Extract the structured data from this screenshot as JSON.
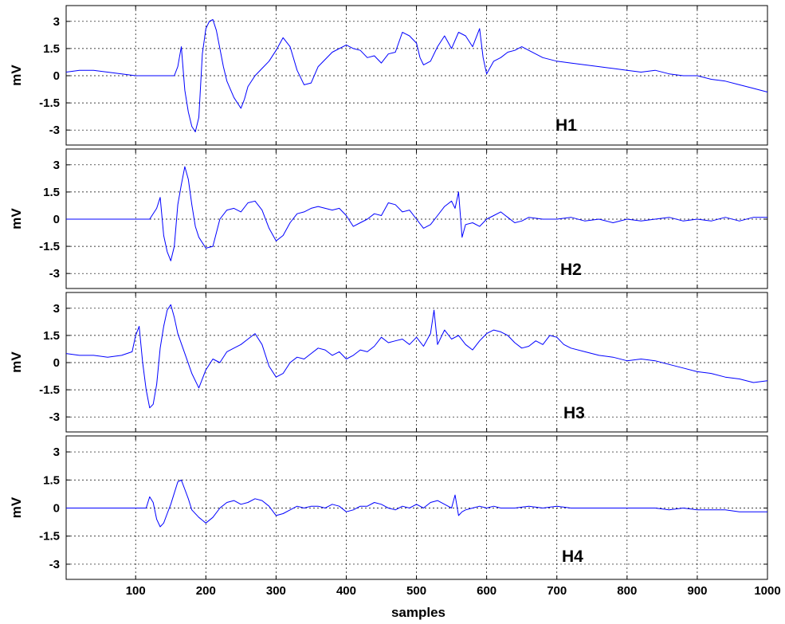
{
  "chart_data": {
    "type": "line",
    "x_label": "samples",
    "x_ticks": [
      100,
      200,
      300,
      400,
      500,
      600,
      700,
      800,
      900,
      1000
    ],
    "xlim": [
      1,
      1000
    ],
    "y_ticks": [
      3,
      1.5,
      0,
      -1.5,
      -3
    ],
    "y_tick_labels": [
      "3",
      "1.5",
      "0",
      "-1.5",
      "-3"
    ],
    "ylim": [
      -3.3,
      3.3
    ],
    "grid": true,
    "line_color": "#0000ff",
    "panels": [
      {
        "label": "H1",
        "ylabel": "mV",
        "x": [
          1,
          20,
          40,
          60,
          80,
          100,
          120,
          140,
          155,
          160,
          165,
          170,
          175,
          180,
          185,
          190,
          195,
          200,
          205,
          210,
          215,
          220,
          225,
          230,
          240,
          250,
          255,
          260,
          270,
          280,
          290,
          300,
          310,
          320,
          330,
          340,
          350,
          360,
          380,
          400,
          410,
          420,
          430,
          440,
          450,
          460,
          470,
          480,
          490,
          500,
          505,
          510,
          520,
          530,
          540,
          550,
          560,
          570,
          580,
          590,
          595,
          600,
          610,
          620,
          630,
          640,
          650,
          660,
          680,
          700,
          720,
          740,
          760,
          780,
          800,
          820,
          840,
          860,
          880,
          900,
          920,
          940,
          960,
          980,
          1000
        ],
        "values": [
          0.2,
          0.3,
          0.3,
          0.2,
          0.1,
          0.0,
          0.0,
          0.0,
          0.0,
          0.5,
          1.6,
          -0.8,
          -2.0,
          -2.8,
          -3.1,
          -2.3,
          1.2,
          2.6,
          3.0,
          3.1,
          2.5,
          1.5,
          0.5,
          -0.3,
          -1.2,
          -1.8,
          -1.3,
          -0.6,
          0.0,
          0.4,
          0.8,
          1.4,
          2.1,
          1.6,
          0.3,
          -0.5,
          -0.4,
          0.5,
          1.3,
          1.7,
          1.5,
          1.4,
          1.0,
          1.1,
          0.7,
          1.2,
          1.3,
          2.4,
          2.2,
          1.8,
          1.0,
          0.6,
          0.8,
          1.6,
          2.2,
          1.5,
          2.4,
          2.2,
          1.6,
          2.6,
          1.0,
          0.1,
          0.8,
          1.0,
          1.3,
          1.4,
          1.6,
          1.4,
          1.0,
          0.8,
          0.7,
          0.6,
          0.5,
          0.4,
          0.3,
          0.2,
          0.3,
          0.1,
          0.0,
          0.0,
          -0.2,
          -0.3,
          -0.5,
          -0.7,
          -0.9
        ]
      },
      {
        "label": "H2",
        "ylabel": "mV",
        "x": [
          1,
          20,
          40,
          60,
          80,
          100,
          110,
          120,
          130,
          135,
          140,
          145,
          150,
          155,
          160,
          165,
          170,
          175,
          180,
          185,
          190,
          200,
          210,
          220,
          230,
          240,
          250,
          260,
          270,
          280,
          290,
          300,
          310,
          320,
          330,
          340,
          350,
          360,
          370,
          380,
          390,
          400,
          410,
          420,
          430,
          440,
          450,
          460,
          470,
          480,
          490,
          500,
          510,
          520,
          530,
          540,
          550,
          555,
          560,
          565,
          570,
          580,
          590,
          600,
          610,
          620,
          630,
          640,
          650,
          660,
          680,
          700,
          720,
          740,
          760,
          780,
          800,
          820,
          840,
          860,
          880,
          900,
          920,
          940,
          960,
          980,
          1000
        ],
        "values": [
          0.0,
          0.0,
          0.0,
          0.0,
          0.0,
          0.0,
          0.0,
          0.0,
          0.6,
          1.2,
          -0.9,
          -1.8,
          -2.3,
          -1.5,
          0.8,
          1.9,
          2.9,
          2.2,
          0.8,
          -0.4,
          -1.0,
          -1.6,
          -1.5,
          0.0,
          0.5,
          0.6,
          0.4,
          0.9,
          1.0,
          0.5,
          -0.5,
          -1.2,
          -0.9,
          -0.2,
          0.3,
          0.4,
          0.6,
          0.7,
          0.6,
          0.5,
          0.6,
          0.2,
          -0.4,
          -0.2,
          0.0,
          0.3,
          0.2,
          0.9,
          0.8,
          0.4,
          0.5,
          0.0,
          -0.5,
          -0.3,
          0.2,
          0.7,
          1.0,
          0.6,
          1.5,
          -1.0,
          -0.3,
          -0.2,
          -0.4,
          0.0,
          0.2,
          0.4,
          0.1,
          -0.2,
          -0.1,
          0.1,
          0.0,
          0.0,
          0.1,
          -0.1,
          0.0,
          -0.2,
          0.0,
          -0.1,
          0.0,
          0.1,
          -0.1,
          0.0,
          -0.1,
          0.1,
          -0.1,
          0.1,
          0.1
        ]
      },
      {
        "label": "H3",
        "ylabel": "mV",
        "x": [
          1,
          20,
          40,
          60,
          80,
          95,
          100,
          105,
          110,
          115,
          120,
          125,
          130,
          135,
          140,
          145,
          150,
          155,
          160,
          170,
          180,
          190,
          200,
          210,
          220,
          230,
          240,
          250,
          260,
          270,
          280,
          290,
          300,
          310,
          320,
          330,
          340,
          350,
          360,
          370,
          380,
          390,
          400,
          410,
          420,
          430,
          440,
          450,
          460,
          470,
          480,
          490,
          500,
          510,
          520,
          525,
          530,
          540,
          550,
          560,
          570,
          580,
          590,
          600,
          610,
          620,
          630,
          640,
          650,
          660,
          670,
          680,
          690,
          700,
          710,
          720,
          740,
          760,
          780,
          800,
          820,
          840,
          860,
          880,
          900,
          920,
          940,
          960,
          980,
          1000
        ],
        "values": [
          0.5,
          0.4,
          0.4,
          0.3,
          0.4,
          0.6,
          1.5,
          2.0,
          0.0,
          -1.5,
          -2.5,
          -2.3,
          -1.2,
          0.8,
          2.0,
          2.9,
          3.2,
          2.5,
          1.6,
          0.5,
          -0.6,
          -1.4,
          -0.4,
          0.2,
          0.0,
          0.6,
          0.8,
          1.0,
          1.3,
          1.6,
          1.0,
          -0.2,
          -0.8,
          -0.6,
          0.0,
          0.3,
          0.2,
          0.5,
          0.8,
          0.7,
          0.4,
          0.6,
          0.2,
          0.4,
          0.7,
          0.6,
          0.9,
          1.4,
          1.1,
          1.2,
          1.3,
          1.0,
          1.4,
          0.9,
          1.6,
          2.9,
          1.0,
          1.8,
          1.3,
          1.5,
          1.0,
          0.7,
          1.2,
          1.6,
          1.8,
          1.7,
          1.5,
          1.1,
          0.8,
          0.9,
          1.2,
          1.0,
          1.5,
          1.4,
          1.0,
          0.8,
          0.6,
          0.4,
          0.3,
          0.1,
          0.2,
          0.1,
          -0.1,
          -0.3,
          -0.5,
          -0.6,
          -0.8,
          -0.9,
          -1.1,
          -1.0
        ]
      },
      {
        "label": "H4",
        "ylabel": "mV",
        "x": [
          1,
          20,
          40,
          60,
          80,
          100,
          110,
          115,
          120,
          125,
          130,
          135,
          140,
          145,
          150,
          155,
          160,
          165,
          170,
          175,
          180,
          190,
          200,
          210,
          220,
          230,
          240,
          250,
          260,
          270,
          280,
          290,
          300,
          310,
          320,
          330,
          340,
          350,
          360,
          370,
          380,
          390,
          400,
          410,
          420,
          430,
          440,
          450,
          460,
          470,
          480,
          490,
          500,
          510,
          520,
          530,
          540,
          550,
          555,
          560,
          565,
          570,
          580,
          590,
          600,
          610,
          620,
          640,
          660,
          680,
          700,
          720,
          740,
          760,
          780,
          800,
          820,
          840,
          860,
          880,
          900,
          920,
          940,
          960,
          980,
          1000
        ],
        "values": [
          0.0,
          0.0,
          0.0,
          0.0,
          0.0,
          0.0,
          0.0,
          0.0,
          0.6,
          0.3,
          -0.6,
          -1.0,
          -0.8,
          -0.3,
          0.2,
          0.8,
          1.4,
          1.5,
          1.0,
          0.5,
          -0.1,
          -0.5,
          -0.8,
          -0.5,
          0.0,
          0.3,
          0.4,
          0.2,
          0.3,
          0.5,
          0.4,
          0.1,
          -0.4,
          -0.3,
          -0.1,
          0.1,
          0.0,
          0.1,
          0.1,
          0.0,
          0.2,
          0.1,
          -0.2,
          -0.1,
          0.1,
          0.1,
          0.3,
          0.2,
          0.0,
          -0.1,
          0.1,
          0.0,
          0.2,
          0.0,
          0.3,
          0.4,
          0.2,
          0.0,
          0.7,
          -0.4,
          -0.2,
          -0.1,
          0.0,
          0.1,
          0.0,
          0.1,
          0.0,
          0.0,
          0.1,
          0.0,
          0.1,
          0.0,
          0.0,
          0.0,
          0.0,
          0.0,
          0.0,
          0.0,
          -0.1,
          0.0,
          -0.1,
          -0.1,
          -0.1,
          -0.2,
          -0.2,
          -0.2
        ]
      }
    ]
  }
}
